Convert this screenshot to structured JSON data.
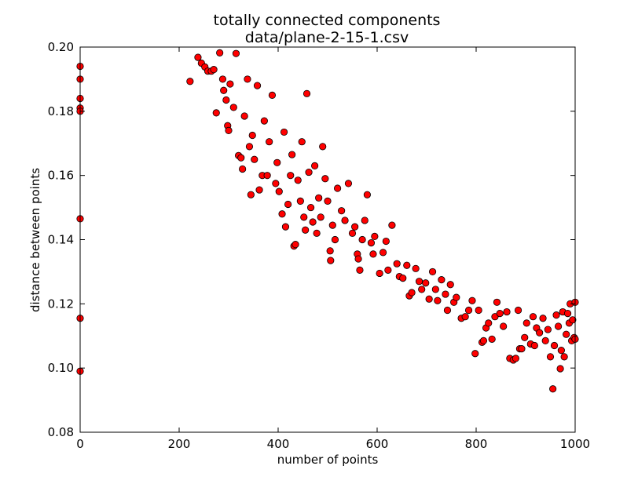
{
  "chart_data": {
    "type": "scatter",
    "title": "totally connected components",
    "subtitle": "data/plane-2-15-1.csv",
    "xlabel": "number of points",
    "ylabel": "distance between points",
    "xlim": [
      0,
      1000
    ],
    "ylim": [
      0.08,
      0.2
    ],
    "xticks": [
      "0",
      "200",
      "400",
      "600",
      "800",
      "1000"
    ],
    "yticks": [
      "0.08",
      "0.10",
      "0.12",
      "0.14",
      "0.16",
      "0.18",
      "0.20"
    ],
    "grid": false,
    "marker_color": "#ff0000",
    "marker_edge_color": "#000000",
    "points": [
      [
        0,
        0.194
      ],
      [
        0,
        0.19
      ],
      [
        0,
        0.184
      ],
      [
        0,
        0.181
      ],
      [
        0,
        0.18
      ],
      [
        0,
        0.1465
      ],
      [
        0,
        0.1155
      ],
      [
        0,
        0.099
      ],
      [
        222,
        0.1893
      ],
      [
        238,
        0.1968
      ],
      [
        245,
        0.195
      ],
      [
        252,
        0.1938
      ],
      [
        258,
        0.1925
      ],
      [
        265,
        0.1925
      ],
      [
        270,
        0.193
      ],
      [
        275,
        0.1795
      ],
      [
        282,
        0.1982
      ],
      [
        288,
        0.19
      ],
      [
        290,
        0.1865
      ],
      [
        295,
        0.1835
      ],
      [
        298,
        0.1755
      ],
      [
        300,
        0.174
      ],
      [
        303,
        0.1885
      ],
      [
        310,
        0.1812
      ],
      [
        315,
        0.198
      ],
      [
        320,
        0.1662
      ],
      [
        325,
        0.1655
      ],
      [
        328,
        0.162
      ],
      [
        332,
        0.1785
      ],
      [
        338,
        0.19
      ],
      [
        342,
        0.169
      ],
      [
        345,
        0.154
      ],
      [
        348,
        0.1725
      ],
      [
        352,
        0.165
      ],
      [
        358,
        0.188
      ],
      [
        362,
        0.1555
      ],
      [
        368,
        0.16
      ],
      [
        372,
        0.177
      ],
      [
        378,
        0.16
      ],
      [
        382,
        0.1705
      ],
      [
        388,
        0.185
      ],
      [
        395,
        0.1575
      ],
      [
        398,
        0.164
      ],
      [
        402,
        0.155
      ],
      [
        408,
        0.148
      ],
      [
        412,
        0.1735
      ],
      [
        415,
        0.144
      ],
      [
        420,
        0.151
      ],
      [
        425,
        0.16
      ],
      [
        428,
        0.1665
      ],
      [
        432,
        0.138
      ],
      [
        435,
        0.1385
      ],
      [
        440,
        0.1585
      ],
      [
        445,
        0.152
      ],
      [
        448,
        0.1705
      ],
      [
        452,
        0.147
      ],
      [
        455,
        0.143
      ],
      [
        458,
        0.1855
      ],
      [
        462,
        0.161
      ],
      [
        466,
        0.15
      ],
      [
        470,
        0.1455
      ],
      [
        474,
        0.163
      ],
      [
        478,
        0.142
      ],
      [
        482,
        0.153
      ],
      [
        486,
        0.147
      ],
      [
        490,
        0.169
      ],
      [
        495,
        0.159
      ],
      [
        500,
        0.152
      ],
      [
        505,
        0.1365
      ],
      [
        506,
        0.1335
      ],
      [
        510,
        0.1445
      ],
      [
        515,
        0.14
      ],
      [
        520,
        0.156
      ],
      [
        528,
        0.149
      ],
      [
        535,
        0.146
      ],
      [
        542,
        0.1575
      ],
      [
        550,
        0.142
      ],
      [
        555,
        0.144
      ],
      [
        560,
        0.1355
      ],
      [
        562,
        0.134
      ],
      [
        565,
        0.1305
      ],
      [
        570,
        0.14
      ],
      [
        575,
        0.146
      ],
      [
        580,
        0.154
      ],
      [
        588,
        0.139
      ],
      [
        592,
        0.1355
      ],
      [
        595,
        0.141
      ],
      [
        605,
        0.1295
      ],
      [
        612,
        0.136
      ],
      [
        618,
        0.1395
      ],
      [
        622,
        0.1305
      ],
      [
        630,
        0.1445
      ],
      [
        640,
        0.1325
      ],
      [
        645,
        0.1285
      ],
      [
        652,
        0.128
      ],
      [
        660,
        0.132
      ],
      [
        665,
        0.1225
      ],
      [
        670,
        0.1235
      ],
      [
        678,
        0.131
      ],
      [
        685,
        0.127
      ],
      [
        690,
        0.1245
      ],
      [
        698,
        0.1265
      ],
      [
        705,
        0.1215
      ],
      [
        712,
        0.13
      ],
      [
        718,
        0.1245
      ],
      [
        722,
        0.121
      ],
      [
        730,
        0.1275
      ],
      [
        738,
        0.123
      ],
      [
        742,
        0.118
      ],
      [
        748,
        0.126
      ],
      [
        755,
        0.1205
      ],
      [
        760,
        0.122
      ],
      [
        770,
        0.1155
      ],
      [
        778,
        0.116
      ],
      [
        785,
        0.118
      ],
      [
        792,
        0.121
      ],
      [
        798,
        0.1045
      ],
      [
        805,
        0.118
      ],
      [
        812,
        0.108
      ],
      [
        815,
        0.1085
      ],
      [
        820,
        0.1125
      ],
      [
        825,
        0.114
      ],
      [
        832,
        0.109
      ],
      [
        838,
        0.116
      ],
      [
        842,
        0.1205
      ],
      [
        848,
        0.117
      ],
      [
        855,
        0.113
      ],
      [
        862,
        0.1175
      ],
      [
        868,
        0.103
      ],
      [
        875,
        0.1025
      ],
      [
        880,
        0.103
      ],
      [
        885,
        0.118
      ],
      [
        888,
        0.106
      ],
      [
        892,
        0.106
      ],
      [
        898,
        0.1095
      ],
      [
        902,
        0.114
      ],
      [
        910,
        0.1075
      ],
      [
        915,
        0.116
      ],
      [
        918,
        0.107
      ],
      [
        922,
        0.1125
      ],
      [
        928,
        0.111
      ],
      [
        935,
        0.1155
      ],
      [
        940,
        0.1085
      ],
      [
        945,
        0.112
      ],
      [
        950,
        0.1035
      ],
      [
        955,
        0.0935
      ],
      [
        958,
        0.107
      ],
      [
        962,
        0.1165
      ],
      [
        966,
        0.113
      ],
      [
        970,
        0.0998
      ],
      [
        972,
        0.1055
      ],
      [
        975,
        0.1175
      ],
      [
        978,
        0.1035
      ],
      [
        982,
        0.1105
      ],
      [
        985,
        0.117
      ],
      [
        988,
        0.114
      ],
      [
        990,
        0.12
      ],
      [
        993,
        0.1085
      ],
      [
        995,
        0.115
      ],
      [
        998,
        0.1095
      ],
      [
        1000,
        0.109
      ],
      [
        1000,
        0.1205
      ]
    ]
  }
}
